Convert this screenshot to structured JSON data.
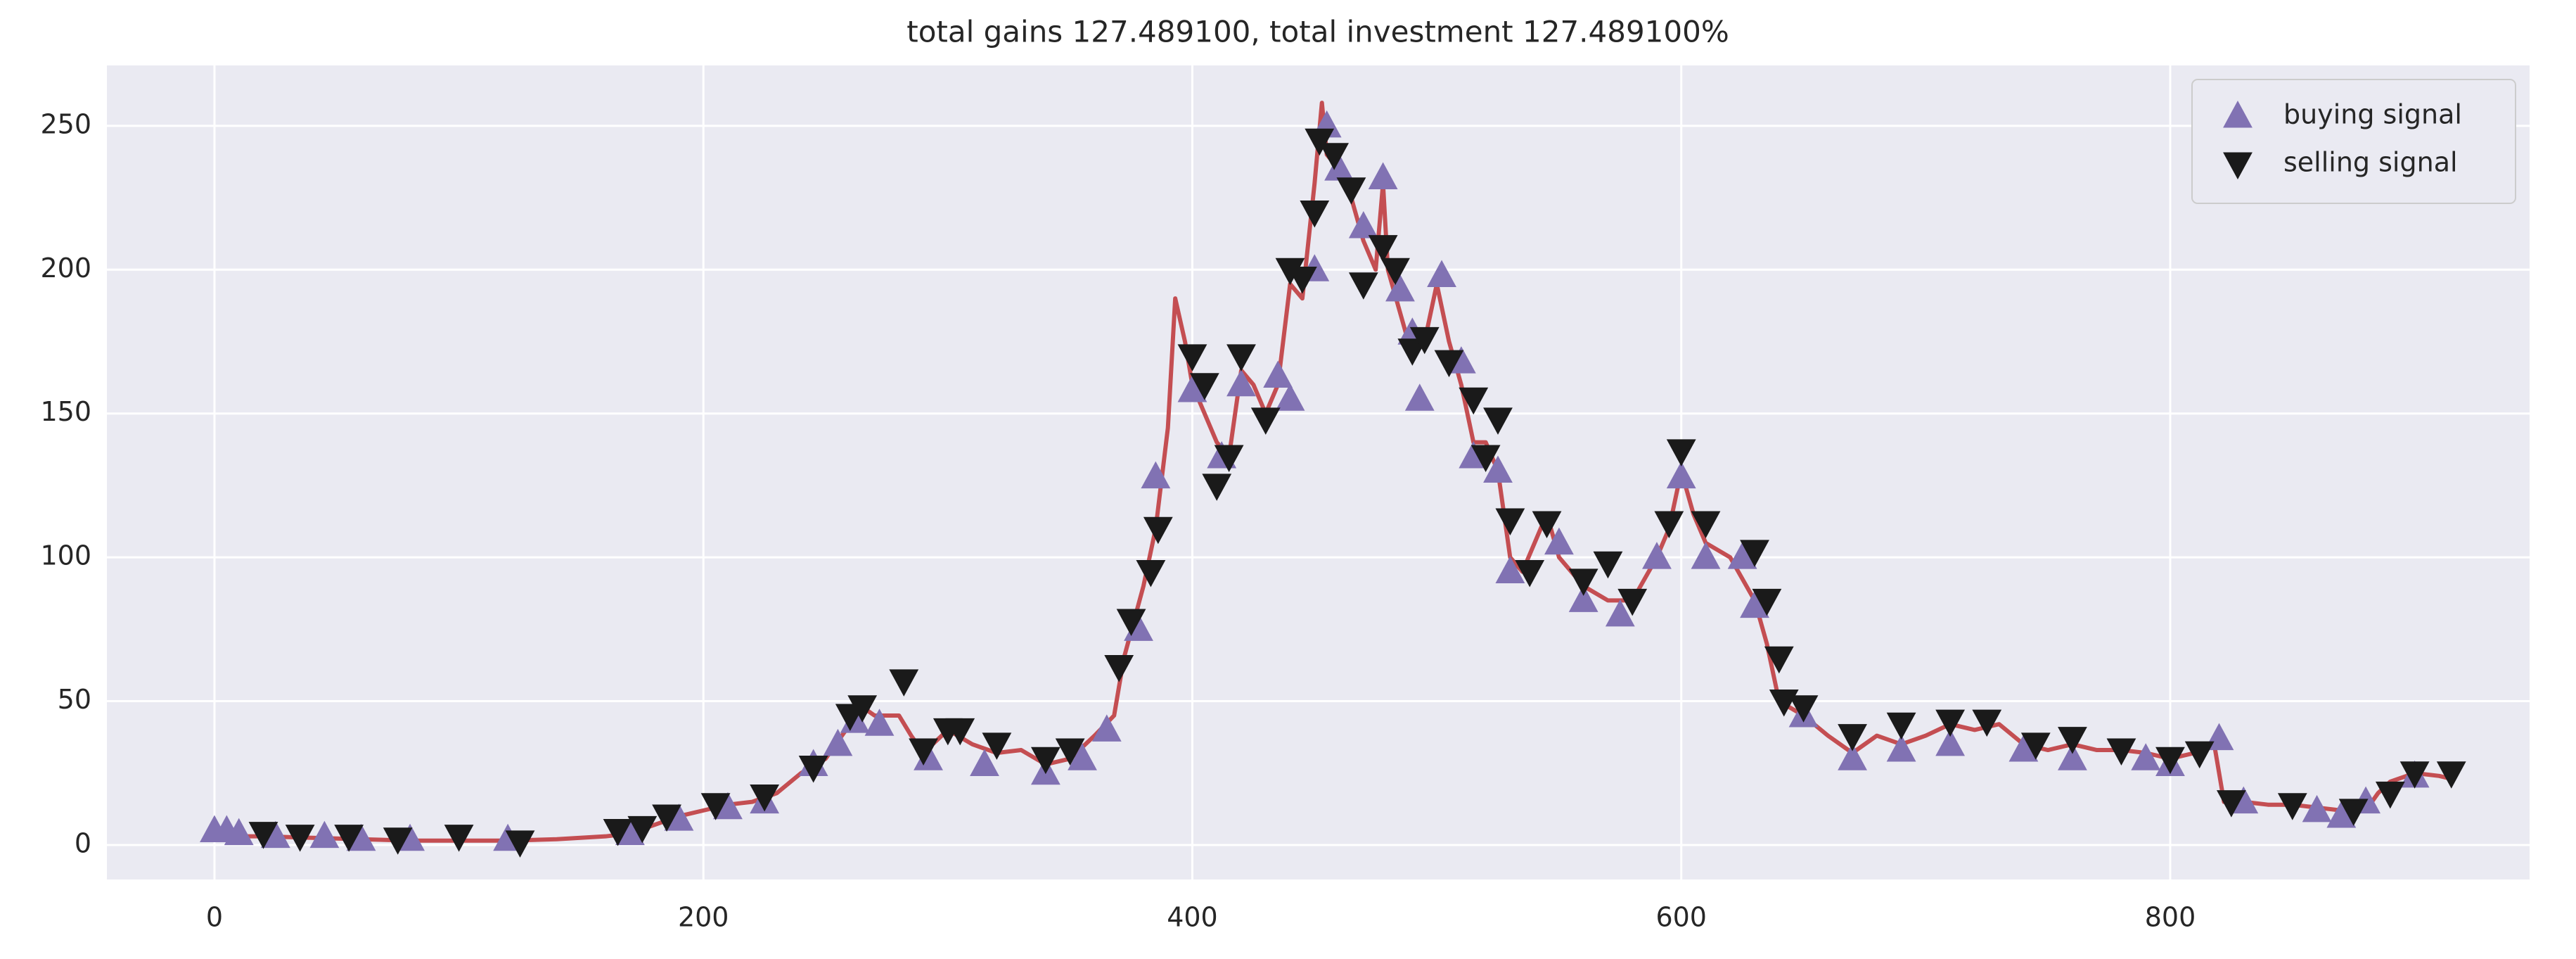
{
  "chart_data": {
    "type": "line",
    "title": "total gains 127.489100, total investment 127.489100%",
    "x": [
      0,
      20,
      40,
      60,
      80,
      100,
      120,
      140,
      160,
      170,
      180,
      190,
      200,
      210,
      220,
      230,
      240,
      250,
      260,
      265,
      270,
      280,
      285,
      290,
      300,
      310,
      320,
      330,
      340,
      350,
      360,
      368,
      372,
      380,
      385,
      390,
      393,
      397,
      400,
      405,
      410,
      415,
      420,
      425,
      430,
      435,
      440,
      445,
      450,
      453,
      455,
      460,
      465,
      470,
      475,
      478,
      480,
      485,
      490,
      495,
      500,
      505,
      510,
      515,
      520,
      525,
      530,
      535,
      540,
      545,
      550,
      560,
      570,
      580,
      590,
      595,
      600,
      605,
      610,
      620,
      630,
      635,
      640,
      650,
      660,
      670,
      680,
      690,
      700,
      710,
      720,
      730,
      740,
      750,
      760,
      770,
      780,
      790,
      800,
      810,
      818,
      822,
      830,
      840,
      850,
      860,
      870,
      880,
      885,
      890,
      900,
      910,
      915
    ],
    "series": [
      {
        "color": "#c44e52",
        "values": [
          3,
          3,
          2.5,
          2,
          1.5,
          1.5,
          1.5,
          2,
          3,
          4,
          7,
          10,
          12,
          14,
          15,
          18,
          25,
          30,
          42,
          48,
          45,
          45,
          38,
          32,
          40,
          35,
          32,
          33,
          28,
          30,
          38,
          45,
          65,
          90,
          110,
          145,
          190,
          175,
          160,
          150,
          140,
          135,
          165,
          160,
          150,
          160,
          195,
          190,
          230,
          258,
          240,
          235,
          225,
          210,
          200,
          230,
          200,
          185,
          170,
          175,
          195,
          175,
          160,
          140,
          140,
          130,
          100,
          95,
          105,
          115,
          100,
          90,
          85,
          85,
          100,
          110,
          130,
          115,
          105,
          100,
          85,
          70,
          50,
          45,
          38,
          32,
          38,
          35,
          38,
          42,
          40,
          42,
          35,
          33,
          35,
          33,
          33,
          32,
          30,
          32,
          35,
          15,
          15,
          14,
          14,
          13,
          12,
          12,
          18,
          22,
          25,
          24,
          23
        ]
      },
      {
        "name": "buying signal",
        "type": "scatter",
        "marker": "triangle-up",
        "color": "#8172b3",
        "x": [
          0,
          5,
          10,
          25,
          45,
          60,
          80,
          120,
          170,
          190,
          210,
          225,
          245,
          255,
          262,
          272,
          292,
          315,
          340,
          355,
          365,
          378,
          385,
          400,
          412,
          420,
          435,
          440,
          450,
          455,
          460,
          470,
          478,
          485,
          490,
          493,
          502,
          510,
          515,
          525,
          530,
          550,
          560,
          575,
          590,
          600,
          610,
          625,
          630,
          650,
          670,
          690,
          710,
          740,
          760,
          790,
          800,
          820,
          830,
          860,
          870,
          880,
          900
        ],
        "values": [
          5,
          5,
          4,
          3,
          3,
          2,
          2,
          2,
          4,
          9,
          13,
          15,
          28,
          35,
          43,
          42,
          30,
          28,
          25,
          30,
          40,
          75,
          128,
          158,
          135,
          160,
          163,
          155,
          200,
          250,
          235,
          215,
          232,
          193,
          178,
          155,
          198,
          168,
          135,
          130,
          95,
          105,
          85,
          80,
          100,
          128,
          100,
          100,
          83,
          45,
          30,
          33,
          35,
          33,
          30,
          30,
          28,
          37,
          15,
          12,
          10,
          15,
          24
        ]
      },
      {
        "name": "selling signal",
        "type": "scatter",
        "marker": "triangle-down",
        "color": "#1a1a1a",
        "x": [
          20,
          35,
          55,
          75,
          100,
          125,
          165,
          175,
          185,
          205,
          225,
          245,
          260,
          265,
          282,
          290,
          300,
          305,
          320,
          340,
          350,
          370,
          375,
          383,
          386,
          400,
          405,
          410,
          415,
          420,
          430,
          440,
          445,
          450,
          452,
          458,
          465,
          470,
          478,
          483,
          490,
          495,
          505,
          515,
          520,
          525,
          530,
          538,
          545,
          560,
          570,
          580,
          595,
          600,
          610,
          630,
          635,
          640,
          642,
          650,
          670,
          690,
          710,
          725,
          745,
          760,
          780,
          800,
          812,
          825,
          850,
          875,
          890,
          900,
          915
        ],
        "values": [
          4,
          3,
          3,
          2,
          3,
          1,
          5,
          6,
          10,
          14,
          17,
          27,
          45,
          48,
          57,
          33,
          40,
          40,
          35,
          30,
          33,
          62,
          78,
          95,
          110,
          170,
          160,
          125,
          135,
          170,
          148,
          200,
          197,
          220,
          245,
          240,
          228,
          195,
          208,
          200,
          172,
          176,
          168,
          155,
          135,
          148,
          113,
          95,
          112,
          92,
          98,
          85,
          112,
          137,
          112,
          102,
          85,
          65,
          50,
          48,
          38,
          42,
          43,
          43,
          35,
          37,
          33,
          30,
          32,
          15,
          14,
          12,
          18,
          25,
          25
        ]
      }
    ],
    "xlim": [
      -44,
      947
    ],
    "xticks": [
      0,
      200,
      400,
      600,
      800
    ],
    "ylim": [
      -12,
      271
    ],
    "yticks": [
      0,
      50,
      100,
      150,
      200,
      250
    ],
    "grid": true,
    "legend": "upper right"
  }
}
